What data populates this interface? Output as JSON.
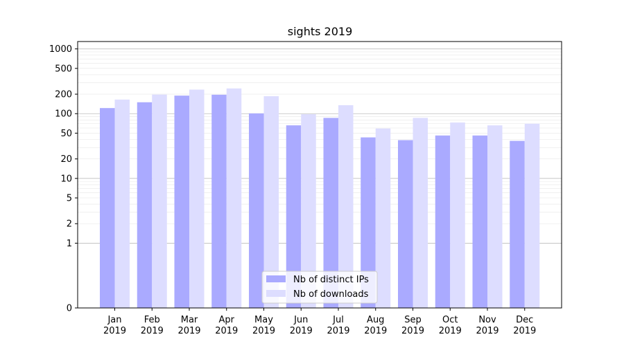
{
  "chart_data": {
    "type": "bar",
    "title": "sights 2019",
    "xlabel": "",
    "ylabel": "",
    "y_scale": "symlog",
    "ylim": [
      0,
      1300
    ],
    "y_ticks": [
      0,
      1,
      2,
      5,
      10,
      20,
      50,
      100,
      200,
      500,
      1000
    ],
    "y_tick_labels": [
      "0",
      "1",
      "2",
      "5",
      "10",
      "20",
      "50",
      "100",
      "200",
      "500",
      "1000"
    ],
    "categories": [
      [
        "Jan",
        "2019"
      ],
      [
        "Feb",
        "2019"
      ],
      [
        "Mar",
        "2019"
      ],
      [
        "Apr",
        "2019"
      ],
      [
        "May",
        "2019"
      ],
      [
        "Jun",
        "2019"
      ],
      [
        "Jul",
        "2019"
      ],
      [
        "Aug",
        "2019"
      ],
      [
        "Sep",
        "2019"
      ],
      [
        "Oct",
        "2019"
      ],
      [
        "Nov",
        "2019"
      ],
      [
        "Dec",
        "2019"
      ]
    ],
    "series": [
      {
        "name": "Nb of distinct IPs",
        "color": "#aaaaff",
        "values": [
          122,
          150,
          190,
          196,
          101,
          66,
          86,
          43,
          39,
          46,
          46,
          38
        ]
      },
      {
        "name": "Nb of downloads",
        "color": "#ddddff",
        "values": [
          165,
          197,
          235,
          245,
          186,
          98,
          135,
          59,
          86,
          73,
          66,
          70
        ]
      }
    ],
    "grid": true,
    "legend_position": "bottom-center"
  }
}
